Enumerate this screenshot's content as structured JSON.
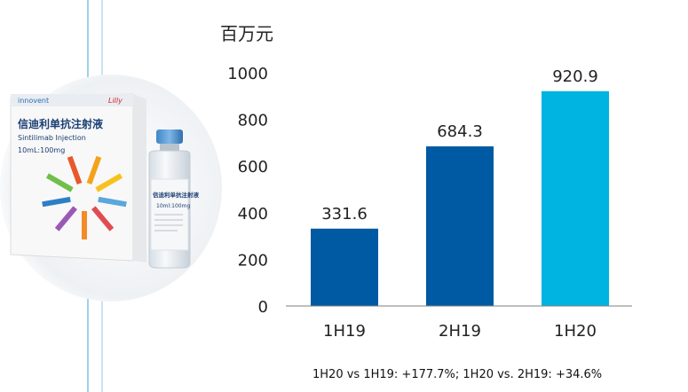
{
  "chart_data": {
    "type": "bar",
    "unit": "百万元",
    "categories": [
      "1H19",
      "2H19",
      "1H20"
    ],
    "values": [
      331.6,
      684.3,
      920.9
    ],
    "value_labels": [
      "331.6",
      "684.3",
      "920.9"
    ],
    "bar_colors": [
      "#005aa3",
      "#005aa3",
      "#00b4e1"
    ],
    "ylim": [
      0,
      1000
    ],
    "yticks": [
      "0",
      "200",
      "400",
      "600",
      "800",
      "1000"
    ],
    "grid": false,
    "footnote": "1H20 vs 1H19: +177.7%; 1H20 vs. 2H19: +34.6%"
  },
  "product": {
    "brand": "innovent",
    "partner_logo": "Lilly",
    "box_chinese_name": "信迪利单抗注射液",
    "box_english_name": "Sintilimab Injection",
    "box_dose": "10mL:100mg",
    "vial_label": "信迪利单抗注射液",
    "vial_dose": "10ml:100mg"
  }
}
